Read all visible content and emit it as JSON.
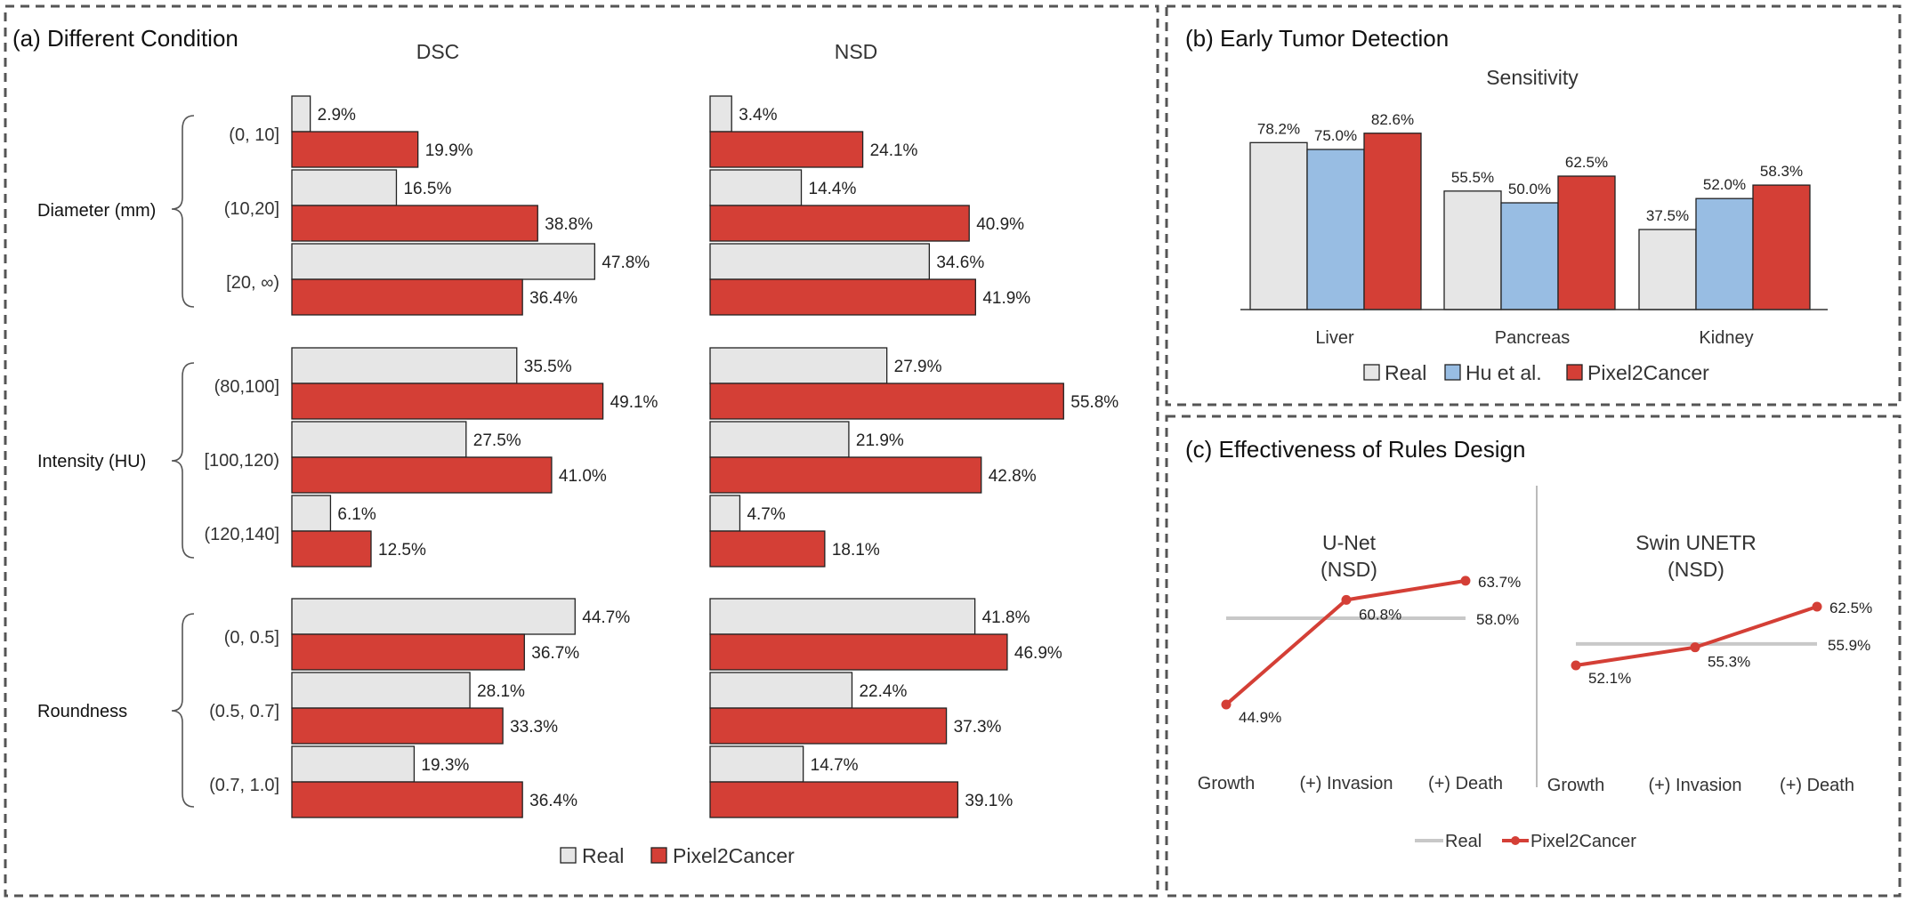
{
  "colors": {
    "real": "#e6e6e6",
    "hu": "#98bde3",
    "pixel2cancer": "#d43f36",
    "real_line": "#c8c8c8"
  },
  "chart_data": [
    {
      "id": "a",
      "type": "bar",
      "orientation": "horizontal",
      "title": "(a) Different Condition",
      "metrics": [
        "DSC",
        "NSD"
      ],
      "groups": [
        {
          "name": "Diameter (mm)",
          "categories": [
            "(0, 10]",
            "(10,20]",
            "[20, ∞)"
          ]
        },
        {
          "name": "Intensity (HU)",
          "categories": [
            "(80,100]",
            "[100,120)",
            "(120,140]"
          ]
        },
        {
          "name": "Roundness",
          "categories": [
            "(0, 0.5]",
            "(0.5, 0.7]",
            "(0.7, 1.0]"
          ]
        }
      ],
      "series": [
        {
          "name": "Real",
          "DSC": [
            2.9,
            16.5,
            47.8,
            35.5,
            27.5,
            6.1,
            44.7,
            28.1,
            19.3
          ],
          "NSD": [
            3.4,
            14.4,
            34.6,
            27.9,
            21.9,
            4.7,
            41.8,
            22.4,
            14.7
          ]
        },
        {
          "name": "Pixel2Cancer",
          "DSC": [
            19.9,
            38.8,
            36.4,
            49.1,
            41.0,
            12.5,
            36.7,
            33.3,
            36.4
          ],
          "NSD": [
            24.1,
            40.9,
            41.9,
            55.8,
            42.8,
            18.1,
            46.9,
            37.3,
            39.1
          ]
        }
      ],
      "value_suffix": "%",
      "legend": [
        "Real",
        "Pixel2Cancer"
      ]
    },
    {
      "id": "b",
      "type": "bar",
      "title": "(b) Early Tumor Detection",
      "subtitle": "Sensitivity",
      "categories": [
        "Liver",
        "Pancreas",
        "Kidney"
      ],
      "series": [
        {
          "name": "Real",
          "values": [
            78.2,
            55.5,
            37.5
          ]
        },
        {
          "name": "Hu et al.",
          "values": [
            75.0,
            50.0,
            52.0
          ]
        },
        {
          "name": "Pixel2Cancer",
          "values": [
            82.6,
            62.5,
            58.3
          ]
        }
      ],
      "value_suffix": "%",
      "legend": [
        "Real",
        "Hu et al.",
        "Pixel2Cancer"
      ]
    },
    {
      "id": "c",
      "type": "line",
      "title": "(c) Effectiveness of Rules Design",
      "subplots": [
        {
          "title_line1": "U-Net",
          "title_line2": "(NSD)",
          "x": [
            "Growth",
            "(+) Invasion",
            "(+) Death"
          ],
          "real": 58.0,
          "pixel2cancer": [
            44.9,
            60.8,
            63.7
          ],
          "real_label": "58.0%",
          "labels": [
            "44.9%",
            "60.8%",
            "63.7%"
          ]
        },
        {
          "title_line1": "Swin UNETR",
          "title_line2": "(NSD)",
          "x": [
            "Growth",
            "(+) Invasion",
            "(+) Death"
          ],
          "real": 55.9,
          "pixel2cancer": [
            52.1,
            55.3,
            62.5
          ],
          "real_label": "55.9%",
          "labels": [
            "52.1%",
            "55.3%",
            "62.5%"
          ]
        }
      ],
      "legend": [
        "Real",
        "Pixel2Cancer"
      ]
    }
  ]
}
